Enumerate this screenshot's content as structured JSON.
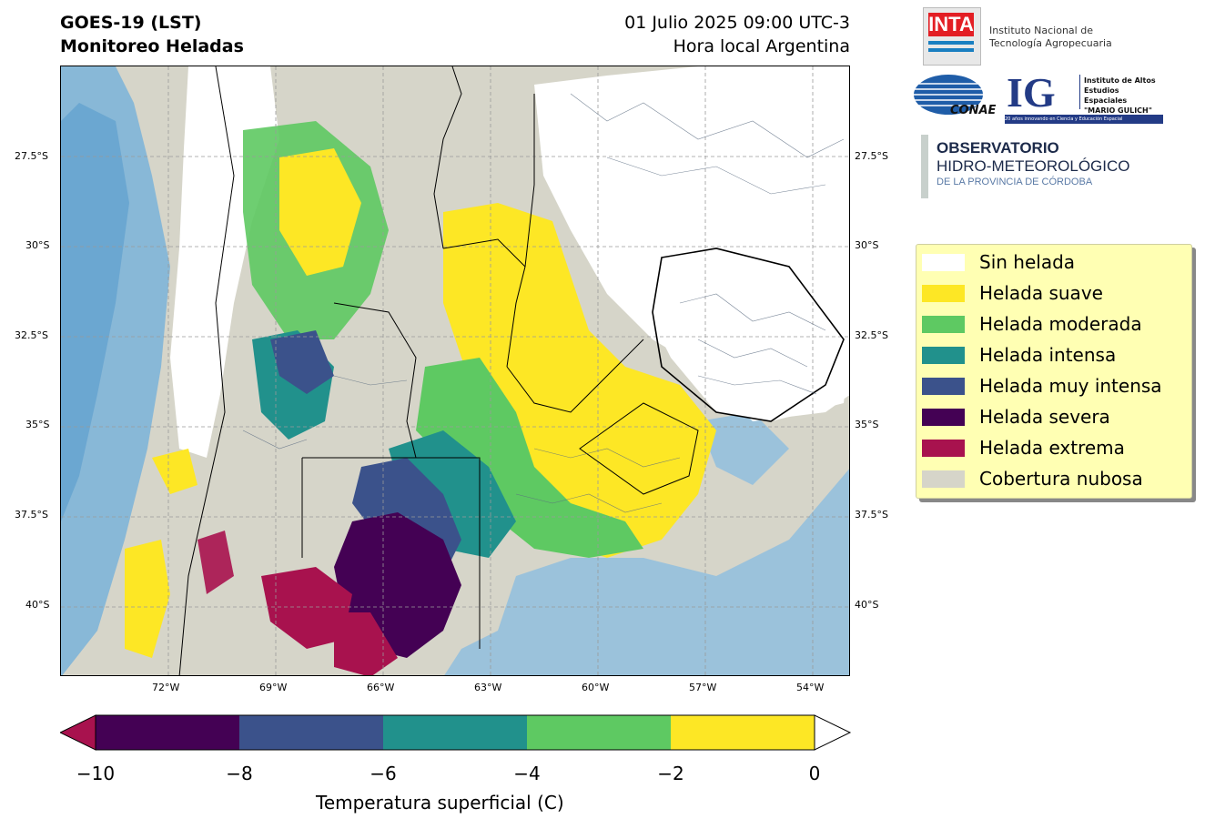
{
  "header": {
    "title_line1": "GOES-19 (LST)",
    "title_line2": "Monitoreo Heladas",
    "datetime": "01 Julio 2025 09:00 UTC-3",
    "local_time_label": "Hora local Argentina"
  },
  "logos": {
    "inta_mark": "INTA",
    "inta_name_line1": "Instituto Nacional de",
    "inta_name_line2": "Tecnología Agropecuaria",
    "conae_mark": "CONAE",
    "ig_mark": "IG",
    "ig_line1": "Instituto de Altos",
    "ig_line2": "Estudios Espaciales",
    "ig_line3": "\"MARIO GULICH\"",
    "ig_tagline": "20 años innovando en Ciencia y Educación Espacial",
    "obs_line1": "OBSERVATORIO",
    "obs_line2": "HIDRO-METEOROLÓGICO",
    "obs_line3": "DE LA PROVINCIA DE CÓRDOBA"
  },
  "map": {
    "lat_labels": [
      "27.5°S",
      "30°S",
      "32.5°S",
      "35°S",
      "37.5°S",
      "40°S"
    ],
    "lon_labels": [
      "72°W",
      "69°W",
      "66°W",
      "63°W",
      "60°W",
      "57°W",
      "54°W"
    ]
  },
  "legend": {
    "items": [
      {
        "label": "Sin helada",
        "color": "#ffffff"
      },
      {
        "label": "Helada suave",
        "color": "#fde725"
      },
      {
        "label": "Helada moderada",
        "color": "#5ec962"
      },
      {
        "label": "Helada intensa",
        "color": "#21918c"
      },
      {
        "label": "Helada muy intensa",
        "color": "#3b528b"
      },
      {
        "label": "Helada severa",
        "color": "#440154"
      },
      {
        "label": "Helada extrema",
        "color": "#a8124e"
      },
      {
        "label": "Cobertura nubosa",
        "color": "#d6d5c9"
      }
    ]
  },
  "colorbar": {
    "ticks": [
      "−10",
      "−8",
      "−6",
      "−4",
      "−2",
      "0"
    ],
    "label": "Temperatura superficial (C)",
    "colors": [
      "#440154",
      "#3b528b",
      "#21918c",
      "#5ec962",
      "#fde725"
    ],
    "under_color": "#a8124e",
    "over_color": "#ffffff"
  }
}
